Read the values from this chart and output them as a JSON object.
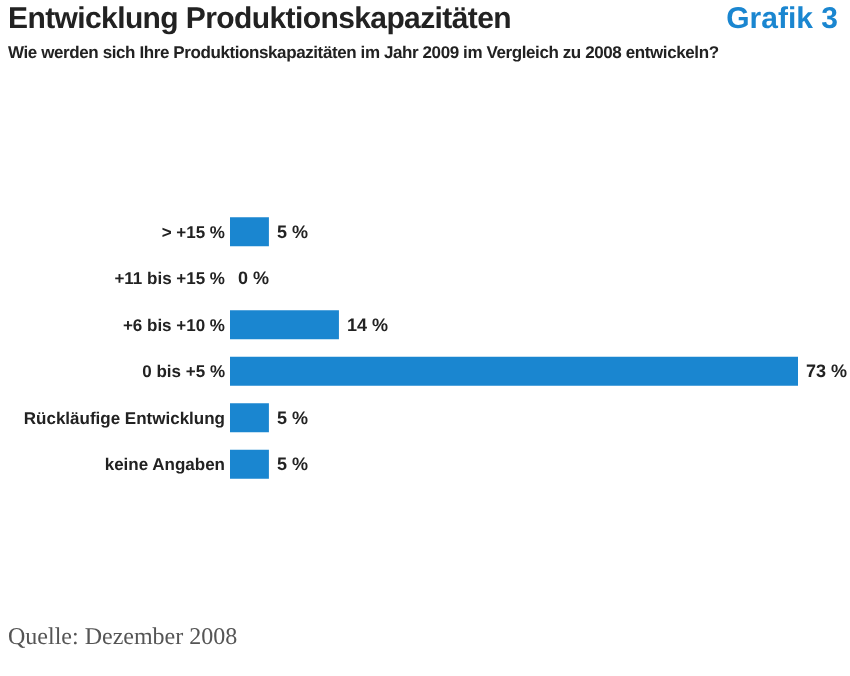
{
  "chart_data": {
    "type": "bar",
    "orientation": "horizontal",
    "title": "Entwicklung Produktionskapazitäten",
    "subtitle": "Wie werden sich Ihre Produktionskapazitäten im Jahr 2009 im Vergleich zu 2008 entwickeln?",
    "categories": [
      "> +15 %",
      "+11 bis +15 %",
      "+6 bis +10 %",
      "0 bis +5 %",
      "Rückläufige Entwicklung",
      "keine Angaben"
    ],
    "values": [
      5,
      0,
      14,
      73,
      5,
      5
    ],
    "value_labels": [
      "5 %",
      "0 %",
      "14 %",
      "73 %",
      "5 %",
      "5 %"
    ],
    "color": "#1a86d0",
    "annotations": [
      "Grafik 3",
      "Quelle: Dezember 2008"
    ]
  }
}
